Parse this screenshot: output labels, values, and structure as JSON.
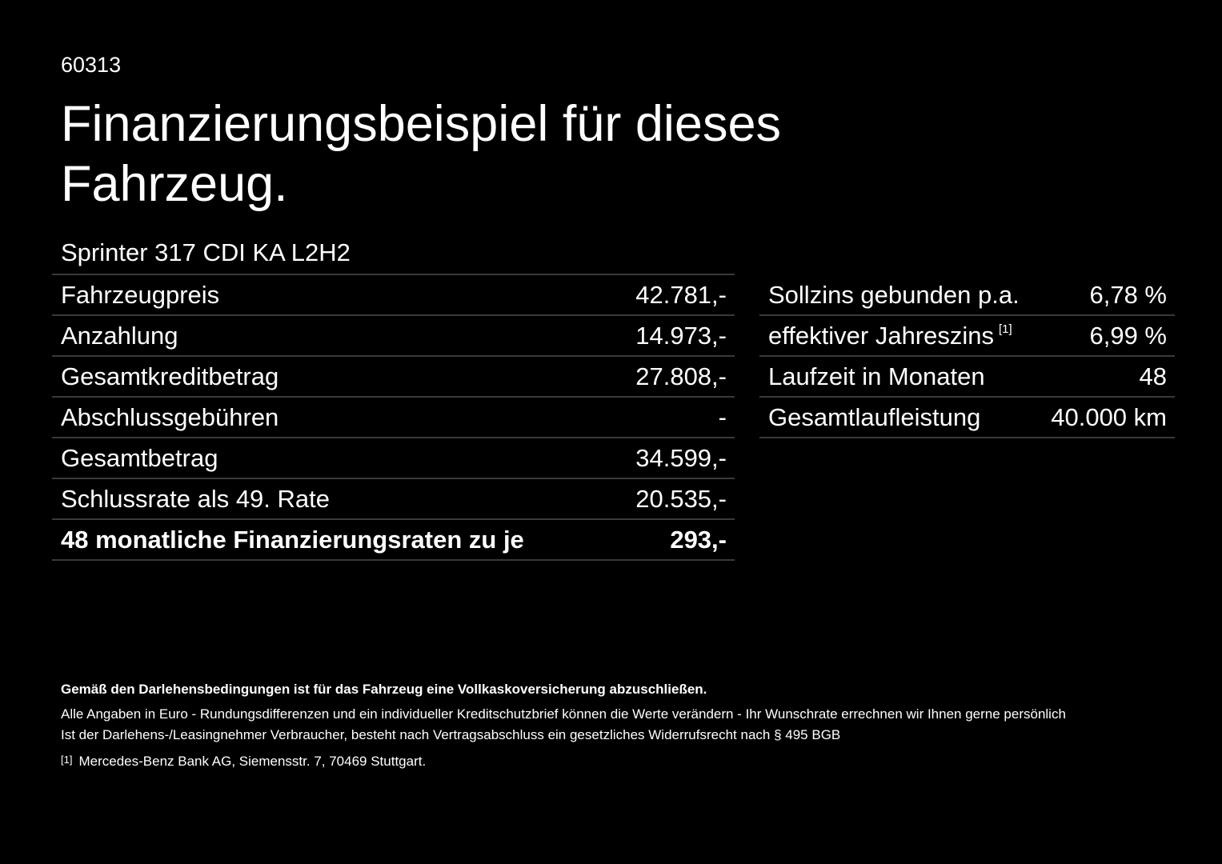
{
  "header": {
    "zip": "60313",
    "title": "Finanzierungsbeispiel für dieses Fahrzeug.",
    "model": "Sprinter 317 CDI KA L2H2"
  },
  "left_table": {
    "rows": [
      {
        "label": "Fahrzeugpreis",
        "value": "42.781,-"
      },
      {
        "label": "Anzahlung",
        "value": "14.973,-"
      },
      {
        "label": "Gesamtkreditbetrag",
        "value": "27.808,-"
      },
      {
        "label": "Abschlussgebühren",
        "value": "-"
      },
      {
        "label": "Gesamtbetrag",
        "value": "34.599,-"
      },
      {
        "label": "Schlussrate als 49. Rate",
        "value": "20.535,-"
      },
      {
        "label": "48 monatliche Finanzierungsraten zu je",
        "value": "293,-"
      }
    ]
  },
  "right_table": {
    "rows": [
      {
        "label": "Sollzins gebunden p.a.",
        "value": "6,78 %"
      },
      {
        "label": "effektiver Jahreszins",
        "note": "[1]",
        "value": "6,99 %"
      },
      {
        "label": "Laufzeit in Monaten",
        "value": "48"
      },
      {
        "label": "Gesamtlaufleistung",
        "value": "40.000 km"
      }
    ]
  },
  "footer": {
    "notice": "Gemäß den Darlehensbedingungen ist für das Fahrzeug eine Vollkaskoversicherung abzuschließen.",
    "lines": [
      "Alle Angaben in Euro - Rundungsdifferenzen und ein individueller Kreditschutzbrief können die Werte verändern - Ihr Wunschrate errechnen wir Ihnen gerne persönlich",
      "Ist der Darlehens-/Leasingnehmer Verbraucher, besteht nach Vertragsabschluss ein gesetzliches Widerrufsrecht nach § 495 BGB"
    ],
    "footnote": {
      "marker": "[1]",
      "text": "Mercedes-Benz Bank AG, Siemensstr. 7, 70469 Stuttgart."
    }
  }
}
